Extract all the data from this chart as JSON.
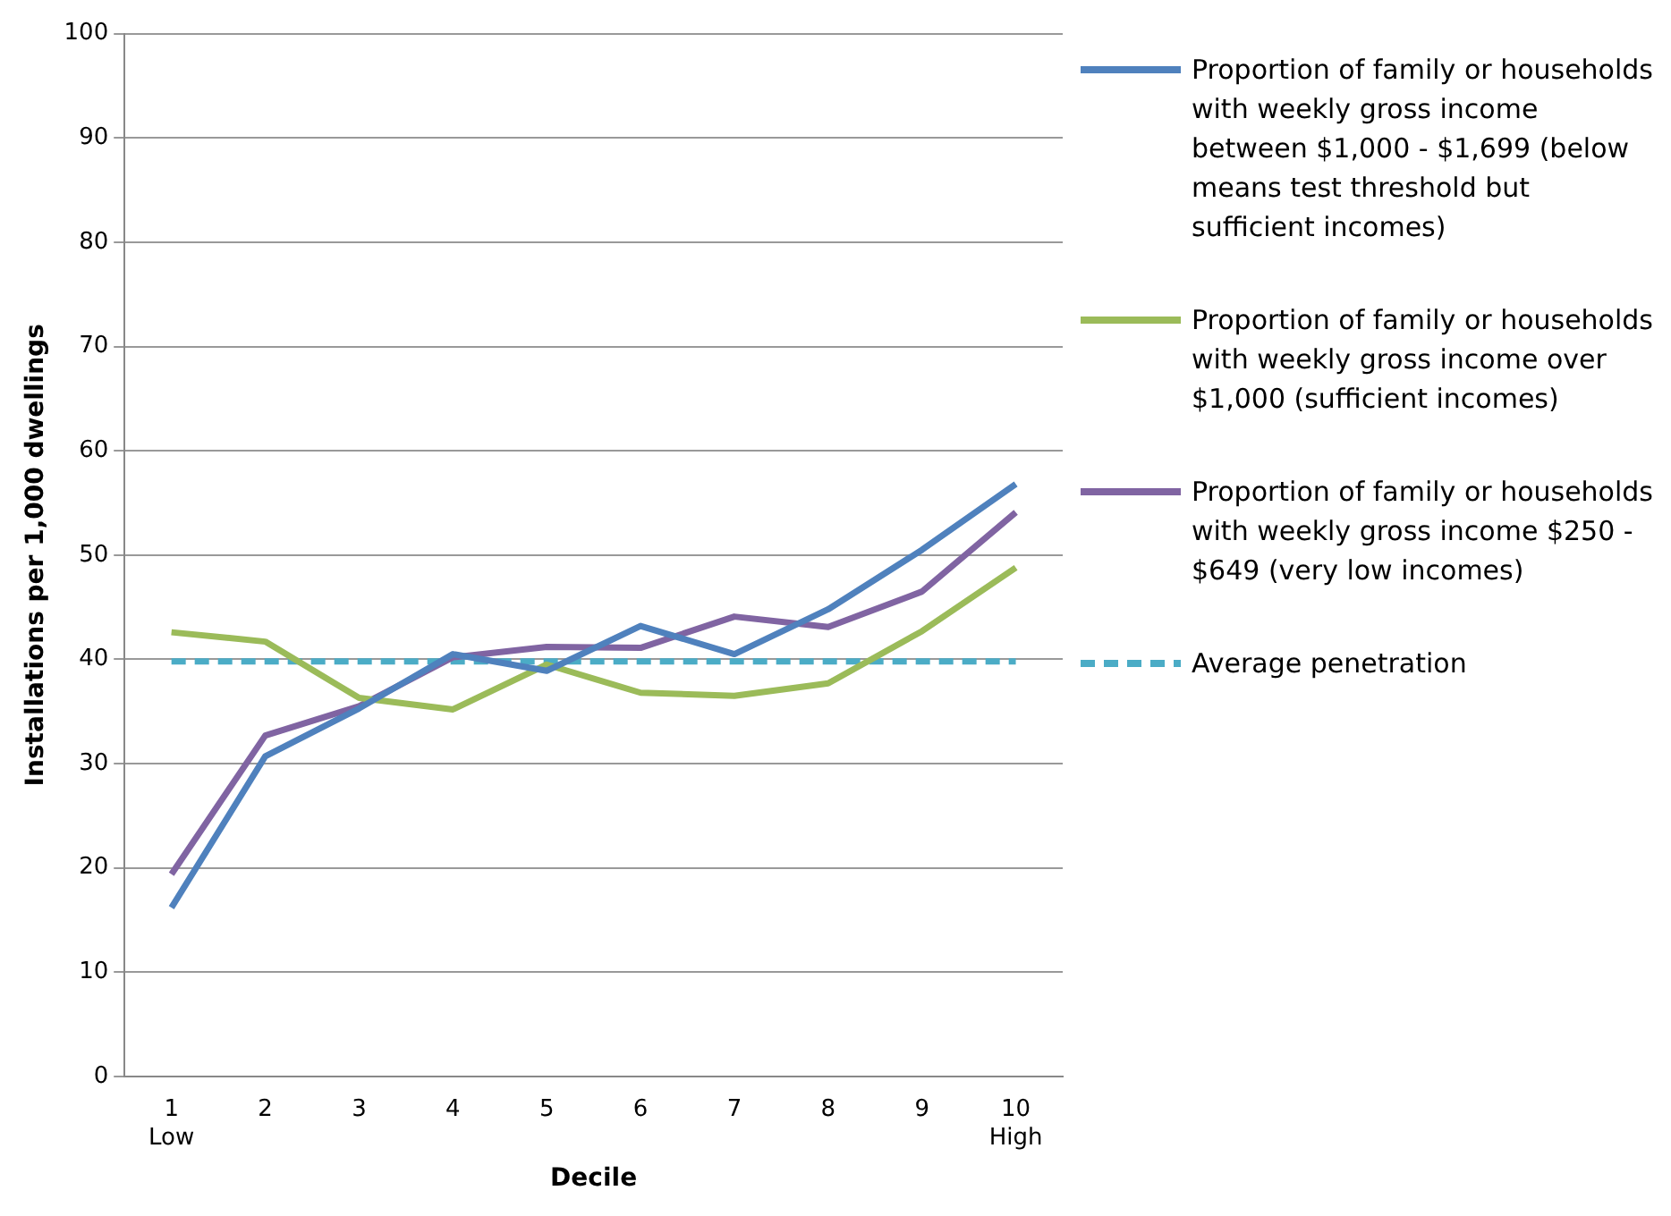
{
  "chart_data": {
    "type": "line",
    "xlabel": "Decile",
    "ylabel": "Installations per 1,000 dwellings",
    "categories": [
      "1\nLow",
      "2",
      "3",
      "4",
      "5",
      "6",
      "7",
      "8",
      "9",
      "10\nHigh"
    ],
    "ylim": [
      0,
      100
    ],
    "yticks": [
      0,
      10,
      20,
      30,
      40,
      50,
      60,
      70,
      80,
      90,
      100
    ],
    "grid": "y",
    "legend": "right",
    "marker": "none",
    "series": [
      {
        "name": "Proportion of family or households with weekly gross income between $1,000 - $1,699  (below means test threshold but sufficient incomes)",
        "color": "#4f81bd",
        "values": [
          16.2,
          30.7,
          35.3,
          40.5,
          38.9,
          43.2,
          40.5,
          44.8,
          50.5,
          56.8
        ]
      },
      {
        "name": "Proportion of family or households with weekly gross income over $1,000 (sufficient incomes)",
        "color": "#9bbb59",
        "values": [
          42.6,
          41.7,
          36.3,
          35.2,
          39.5,
          36.8,
          36.5,
          37.7,
          42.7,
          48.8
        ]
      },
      {
        "name": "Proportion of family or households with weekly gross income $250 - $649 (very low incomes)",
        "color": "#8064a2",
        "values": [
          19.4,
          32.7,
          35.5,
          40.2,
          41.2,
          41.1,
          44.1,
          43.1,
          46.5,
          54.1
        ]
      },
      {
        "name": "Average penetration",
        "color": "#4bacc6",
        "line_style": "dashed",
        "values": [
          39.8,
          39.8,
          39.8,
          39.8,
          39.8,
          39.8,
          39.8,
          39.8,
          39.8,
          39.8
        ]
      }
    ]
  }
}
